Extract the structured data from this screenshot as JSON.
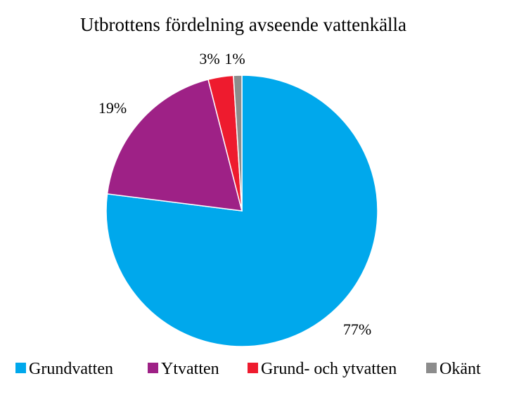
{
  "chart_data": {
    "type": "pie",
    "title": "Utbrottens fördelning avseende vattenkälla",
    "categories": [
      "Grundvatten",
      "Ytvatten",
      "Grund- och ytvatten",
      "Okänt"
    ],
    "values": [
      77,
      19,
      3,
      1
    ],
    "data_labels": [
      "77%",
      "19%",
      "3%",
      "1%"
    ],
    "colors": [
      "#00A8EC",
      "#9E2186",
      "#EE1B2E",
      "#8C8C8C"
    ],
    "legend_position": "bottom",
    "start_angle_deg": 0,
    "direction": "clockwise"
  }
}
